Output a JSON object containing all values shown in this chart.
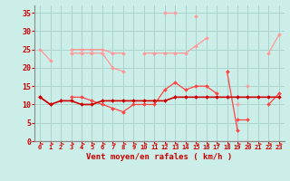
{
  "background_color": "#cceee8",
  "grid_color": "#aad4ce",
  "x_labels": [
    "0",
    "1",
    "2",
    "3",
    "4",
    "5",
    "6",
    "7",
    "8",
    "9",
    "10",
    "11",
    "12",
    "13",
    "14",
    "15",
    "16",
    "17",
    "18",
    "19",
    "20",
    "21",
    "22",
    "23"
  ],
  "xlabel": "Vent moyen/en rafales ( km/h )",
  "ylim": [
    0,
    37
  ],
  "yticks": [
    0,
    5,
    10,
    15,
    20,
    25,
    30,
    35
  ],
  "series": [
    {
      "color": "#ff9999",
      "values": [
        25,
        22,
        null,
        25,
        25,
        25,
        25,
        24,
        24,
        null,
        24,
        24,
        24,
        24,
        24,
        26,
        28,
        null,
        null,
        10,
        null,
        null,
        24,
        29
      ],
      "marker": "D",
      "markersize": 2,
      "linewidth": 0.9
    },
    {
      "color": "#ff9999",
      "values": [
        null,
        null,
        null,
        null,
        null,
        null,
        null,
        null,
        null,
        null,
        null,
        null,
        35,
        35,
        null,
        34,
        null,
        null,
        null,
        null,
        null,
        null,
        null,
        null
      ],
      "marker": "D",
      "markersize": 2,
      "linewidth": 0.9
    },
    {
      "color": "#ff9999",
      "values": [
        null,
        null,
        null,
        24,
        24,
        24,
        24,
        20,
        19,
        null,
        null,
        null,
        null,
        null,
        null,
        null,
        null,
        null,
        null,
        null,
        15,
        null,
        null,
        null
      ],
      "marker": "D",
      "markersize": 2,
      "linewidth": 0.9
    },
    {
      "color": "#ff4444",
      "values": [
        12,
        10,
        null,
        12,
        12,
        11,
        10,
        9,
        8,
        10,
        10,
        10,
        14,
        16,
        14,
        15,
        15,
        13,
        null,
        6,
        6,
        null,
        10,
        13
      ],
      "marker": "D",
      "markersize": 2,
      "linewidth": 0.9
    },
    {
      "color": "#ff4444",
      "values": [
        null,
        null,
        null,
        null,
        null,
        null,
        null,
        null,
        null,
        null,
        null,
        null,
        null,
        null,
        null,
        null,
        null,
        null,
        19,
        3,
        null,
        null,
        null,
        null
      ],
      "marker": "D",
      "markersize": 2,
      "linewidth": 0.9
    },
    {
      "color": "#cc0000",
      "values": [
        12,
        10,
        11,
        11,
        10,
        10,
        11,
        11,
        11,
        11,
        11,
        11,
        11,
        12,
        12,
        12,
        12,
        12,
        12,
        12,
        12,
        12,
        12,
        12
      ],
      "marker": "D",
      "markersize": 2,
      "linewidth": 1.2
    }
  ],
  "arrow_color": "#dd3333",
  "tick_color": "#cc0000",
  "xlabel_color": "#cc0000",
  "spine_color": "#888888"
}
